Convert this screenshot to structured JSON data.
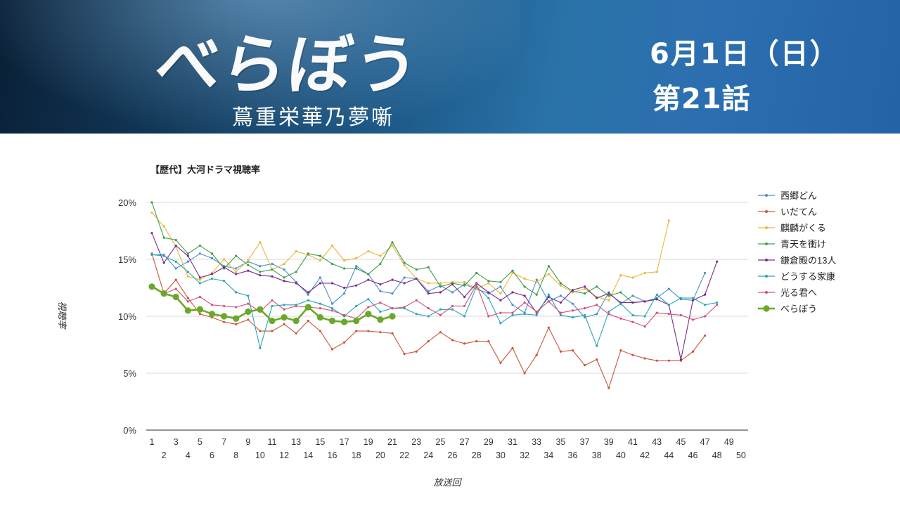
{
  "banner": {
    "logo": "べらぼう",
    "subtitle": "蔦重栄華乃夢噺",
    "date": "6月1日（日）",
    "episode": "第21話"
  },
  "chart_data": {
    "type": "line",
    "title": "【歴代】大河ドラマ視聴率",
    "xlabel": "放送回",
    "ylabel": "視聴率",
    "ylim": [
      0,
      20
    ],
    "y_ticks": [
      "0%",
      "5%",
      "10%",
      "15%",
      "20%"
    ],
    "x_ticks": [
      1,
      2,
      3,
      4,
      5,
      6,
      7,
      8,
      9,
      10,
      11,
      12,
      13,
      14,
      15,
      16,
      17,
      18,
      19,
      20,
      21,
      22,
      23,
      24,
      25,
      26,
      27,
      28,
      29,
      30,
      31,
      32,
      33,
      34,
      35,
      36,
      37,
      38,
      39,
      40,
      41,
      42,
      43,
      44,
      45,
      46,
      47,
      48,
      49,
      50
    ],
    "grid": "horizontal",
    "legend": "right",
    "series": [
      {
        "name": "西郷どん",
        "color": "#4a8fc9",
        "values": [
          15.4,
          15.4,
          14.2,
          14.8,
          15.5,
          15.1,
          14.4,
          14.2,
          14.8,
          14.4,
          14.6,
          14.1,
          13.0,
          11.9,
          13.4,
          11.1,
          12.0,
          14.4,
          13.7,
          12.2,
          12.0,
          13.4,
          13.3,
          12.2,
          12.7,
          12.1,
          12.8,
          12.4,
          12.0,
          12.6,
          11.0,
          10.3,
          13.2,
          11.3,
          11.8,
          11.1,
          9.9,
          10.2,
          12.1,
          11.1,
          11.8,
          11.3,
          11.6,
          12.4,
          11.5,
          11.4,
          13.8
        ]
      },
      {
        "name": "いだてん",
        "color": "#c9553a",
        "values": [
          15.5,
          12.0,
          13.2,
          11.6,
          10.2,
          9.9,
          9.5,
          9.3,
          9.7,
          8.7,
          8.7,
          9.3,
          8.5,
          9.6,
          8.7,
          7.1,
          7.7,
          8.7,
          8.7,
          8.6,
          8.5,
          6.7,
          6.9,
          7.8,
          8.6,
          7.9,
          7.6,
          7.8,
          7.8,
          5.9,
          7.2,
          5.0,
          6.6,
          9.0,
          6.9,
          7.0,
          5.7,
          6.2,
          3.7,
          7.0,
          6.6,
          6.3,
          6.1,
          6.1,
          6.1,
          6.9,
          8.3
        ]
      },
      {
        "name": "麒麟がくる",
        "color": "#e8b83a",
        "values": [
          19.1,
          17.9,
          16.1,
          13.5,
          13.2,
          13.8,
          15.0,
          13.9,
          14.9,
          16.5,
          14.1,
          14.6,
          15.7,
          15.4,
          14.9,
          16.2,
          14.9,
          15.1,
          15.7,
          15.3,
          16.2,
          14.5,
          13.3,
          12.9,
          12.9,
          13.0,
          13.0,
          12.4,
          12.9,
          12.0,
          13.8,
          13.3,
          13.0,
          13.7,
          12.7,
          12.1,
          12.4,
          11.7,
          11.4,
          13.6,
          13.4,
          13.8,
          13.9,
          18.4
        ]
      },
      {
        "name": "青天を衝け",
        "color": "#3f9e4a",
        "values": [
          20.0,
          16.9,
          16.7,
          15.5,
          16.2,
          15.5,
          14.2,
          15.3,
          14.5,
          13.9,
          14.1,
          13.4,
          13.9,
          15.5,
          15.3,
          14.6,
          14.2,
          14.2,
          13.7,
          14.6,
          16.5,
          14.7,
          14.1,
          14.3,
          12.6,
          12.9,
          12.7,
          13.8,
          13.1,
          13.0,
          14.0,
          12.6,
          11.9,
          14.4,
          12.9,
          12.2,
          12.0,
          12.6,
          11.8,
          12.1,
          11.2,
          11.3,
          11.5
        ]
      },
      {
        "name": "鎌倉殿の13人",
        "color": "#7a2a8c",
        "values": [
          17.3,
          14.7,
          16.2,
          15.3,
          13.4,
          13.7,
          14.3,
          13.7,
          14.0,
          13.6,
          13.5,
          13.1,
          12.9,
          12.1,
          12.9,
          12.9,
          12.5,
          12.7,
          13.2,
          12.8,
          13.2,
          12.9,
          13.3,
          12.0,
          12.1,
          12.8,
          11.7,
          12.9,
          12.1,
          11.4,
          12.1,
          11.8,
          10.3,
          11.7,
          11.2,
          12.3,
          12.6,
          11.6,
          12.0,
          11.2,
          11.2,
          11.3,
          11.5,
          11.0,
          6.2,
          11.4,
          11.9,
          14.8
        ]
      },
      {
        "name": "どうする家康",
        "color": "#2aa3b8",
        "values": [
          15.4,
          15.3,
          14.8,
          13.9,
          12.9,
          13.3,
          13.1,
          12.1,
          11.8,
          7.2,
          10.9,
          11.0,
          11.0,
          11.4,
          11.1,
          10.7,
          10.0,
          10.9,
          11.5,
          10.4,
          10.7,
          10.7,
          10.2,
          10.0,
          10.6,
          10.6,
          10.0,
          12.6,
          11.6,
          9.4,
          10.1,
          10.2,
          10.1,
          11.9,
          10.1,
          9.9,
          10.1,
          7.4,
          10.4,
          11.1,
          10.1,
          10.0,
          11.9,
          11.0,
          11.6,
          11.6,
          11.0,
          11.2
        ]
      },
      {
        "name": "光る君へ",
        "color": "#d0507a",
        "values": [
          12.7,
          12.0,
          12.4,
          11.3,
          11.7,
          11.0,
          10.9,
          10.8,
          11.1,
          10.4,
          11.4,
          10.6,
          10.9,
          10.8,
          10.7,
          10.5,
          10.1,
          9.8,
          10.8,
          11.2,
          10.7,
          10.8,
          11.4,
          10.7,
          10.1,
          10.9,
          10.9,
          12.8,
          10.0,
          10.3,
          10.3,
          11.2,
          10.4,
          11.3,
          10.3,
          10.5,
          10.7,
          11.0,
          10.2,
          9.8,
          9.5,
          9.1,
          10.3,
          10.2,
          10.1,
          9.7,
          10.0,
          11.0
        ]
      },
      {
        "name": "べらぼう",
        "color": "#6aa82a",
        "values": [
          12.6,
          12.0,
          11.7,
          10.5,
          10.6,
          10.2,
          10.0,
          9.8,
          10.4,
          10.6,
          9.6,
          9.9,
          9.6,
          10.8,
          9.9,
          9.6,
          9.5,
          9.6,
          10.2,
          9.7,
          10.0
        ]
      }
    ]
  }
}
